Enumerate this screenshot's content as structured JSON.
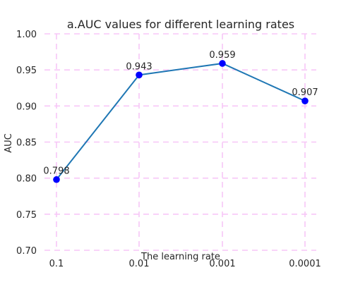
{
  "chart_data": {
    "type": "line",
    "title": "a.AUC values for different learning rates",
    "xlabel": "The learning rate",
    "ylabel": "AUC",
    "categories": [
      "0.1",
      "0.01",
      "0.001",
      "0.0001"
    ],
    "values": [
      0.798,
      0.943,
      0.959,
      0.907
    ],
    "data_labels": [
      "0.798",
      "0.943",
      "0.959",
      "0.907"
    ],
    "ylim": [
      0.7,
      1.0
    ],
    "yticks": [
      0.7,
      0.75,
      0.8,
      0.85,
      0.9,
      0.95,
      1.0
    ],
    "ytick_labels": [
      "0.70",
      "0.75",
      "0.80",
      "0.85",
      "0.90",
      "0.95",
      "1.00"
    ],
    "grid": true,
    "colors": {
      "line": "#1f77b4",
      "marker": "#0000ff",
      "grid": "#f7c6f7",
      "text": "#262626"
    }
  }
}
